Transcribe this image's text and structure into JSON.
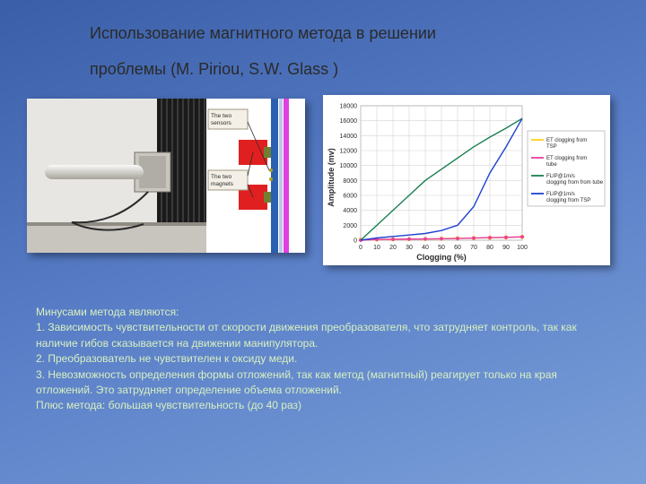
{
  "title_line1": "Использование магнитного метода в решении",
  "title_line2": "проблемы (M. Piriou, S.W. Glass  )",
  "left_labels": {
    "sensors": "The two sensors",
    "magnets": "The two magnets"
  },
  "chart": {
    "type": "line",
    "background_color": "#ffffff",
    "plot_bg": "#ffffff",
    "grid_color": "#d4d4d4",
    "xlabel": "Clogging (%)",
    "ylabel": "Amplitude (mv)",
    "label_fontsize": 9,
    "tick_fontsize": 7,
    "xlim": [
      0,
      100
    ],
    "ylim": [
      0,
      18000
    ],
    "xtick_step": 10,
    "ytick_step": 2000,
    "series": [
      {
        "name": "ET clogging from TSP",
        "color": "#ffd020",
        "marker": "square",
        "x": [
          0,
          10,
          20,
          30,
          40,
          50,
          60,
          70,
          80,
          90,
          100
        ],
        "y": [
          70,
          100,
          120,
          140,
          160,
          200,
          260,
          290,
          320,
          380,
          440
        ]
      },
      {
        "name": "ET clogging from tube",
        "color": "#e83ea0",
        "marker": "diamond",
        "x": [
          0,
          10,
          20,
          30,
          40,
          50,
          60,
          70,
          80,
          90,
          100
        ],
        "y": [
          0,
          100,
          120,
          150,
          170,
          190,
          230,
          290,
          350,
          380,
          450
        ]
      },
      {
        "name": "FLIP@1m/s clogging from from tube",
        "color": "#1a8050",
        "marker": "none",
        "x": [
          0,
          10,
          20,
          30,
          40,
          50,
          60,
          70,
          80,
          90,
          100
        ],
        "y": [
          0,
          2000,
          4000,
          6000,
          8000,
          9500,
          11000,
          12500,
          13800,
          15000,
          16300
        ]
      },
      {
        "name": "FLIP@1m/s clogging from TSP",
        "color": "#2040d0",
        "marker": "none",
        "x": [
          0,
          10,
          20,
          30,
          40,
          50,
          60,
          70,
          80,
          90,
          100
        ],
        "y": [
          0,
          300,
          500,
          700,
          900,
          1300,
          2000,
          4500,
          9000,
          12500,
          16300
        ]
      }
    ],
    "legend_fontsize": 6,
    "legend_items": [
      {
        "label": "ET clogging from TSP",
        "color": "#ffd020"
      },
      {
        "label": "ET clogging from tube",
        "color": "#e83ea0"
      },
      {
        "label": "FLIP@1m/s clogging from from tube",
        "color": "#1a8050"
      },
      {
        "label": "FLIP@1m/s clogging from TSP",
        "color": "#2040d0"
      }
    ]
  },
  "body": {
    "p0": "Минусами метода являются:",
    "p1": "1. Зависимость чувствительности от скорости движения преобразователя, что затрудняет контроль, так как наличие гибов сказывается на движении манипулятора.",
    "p2": "2. Преобразователь не чувствителен к оксиду меди.",
    "p3": "3. Невозможность определения формы отложений, так как метод (магнитный) реагирует только на края отложений. Это затрудняет определение объема отложений.",
    "p4": "Плюс метода: большая чувствительность (до 40 раз)"
  }
}
